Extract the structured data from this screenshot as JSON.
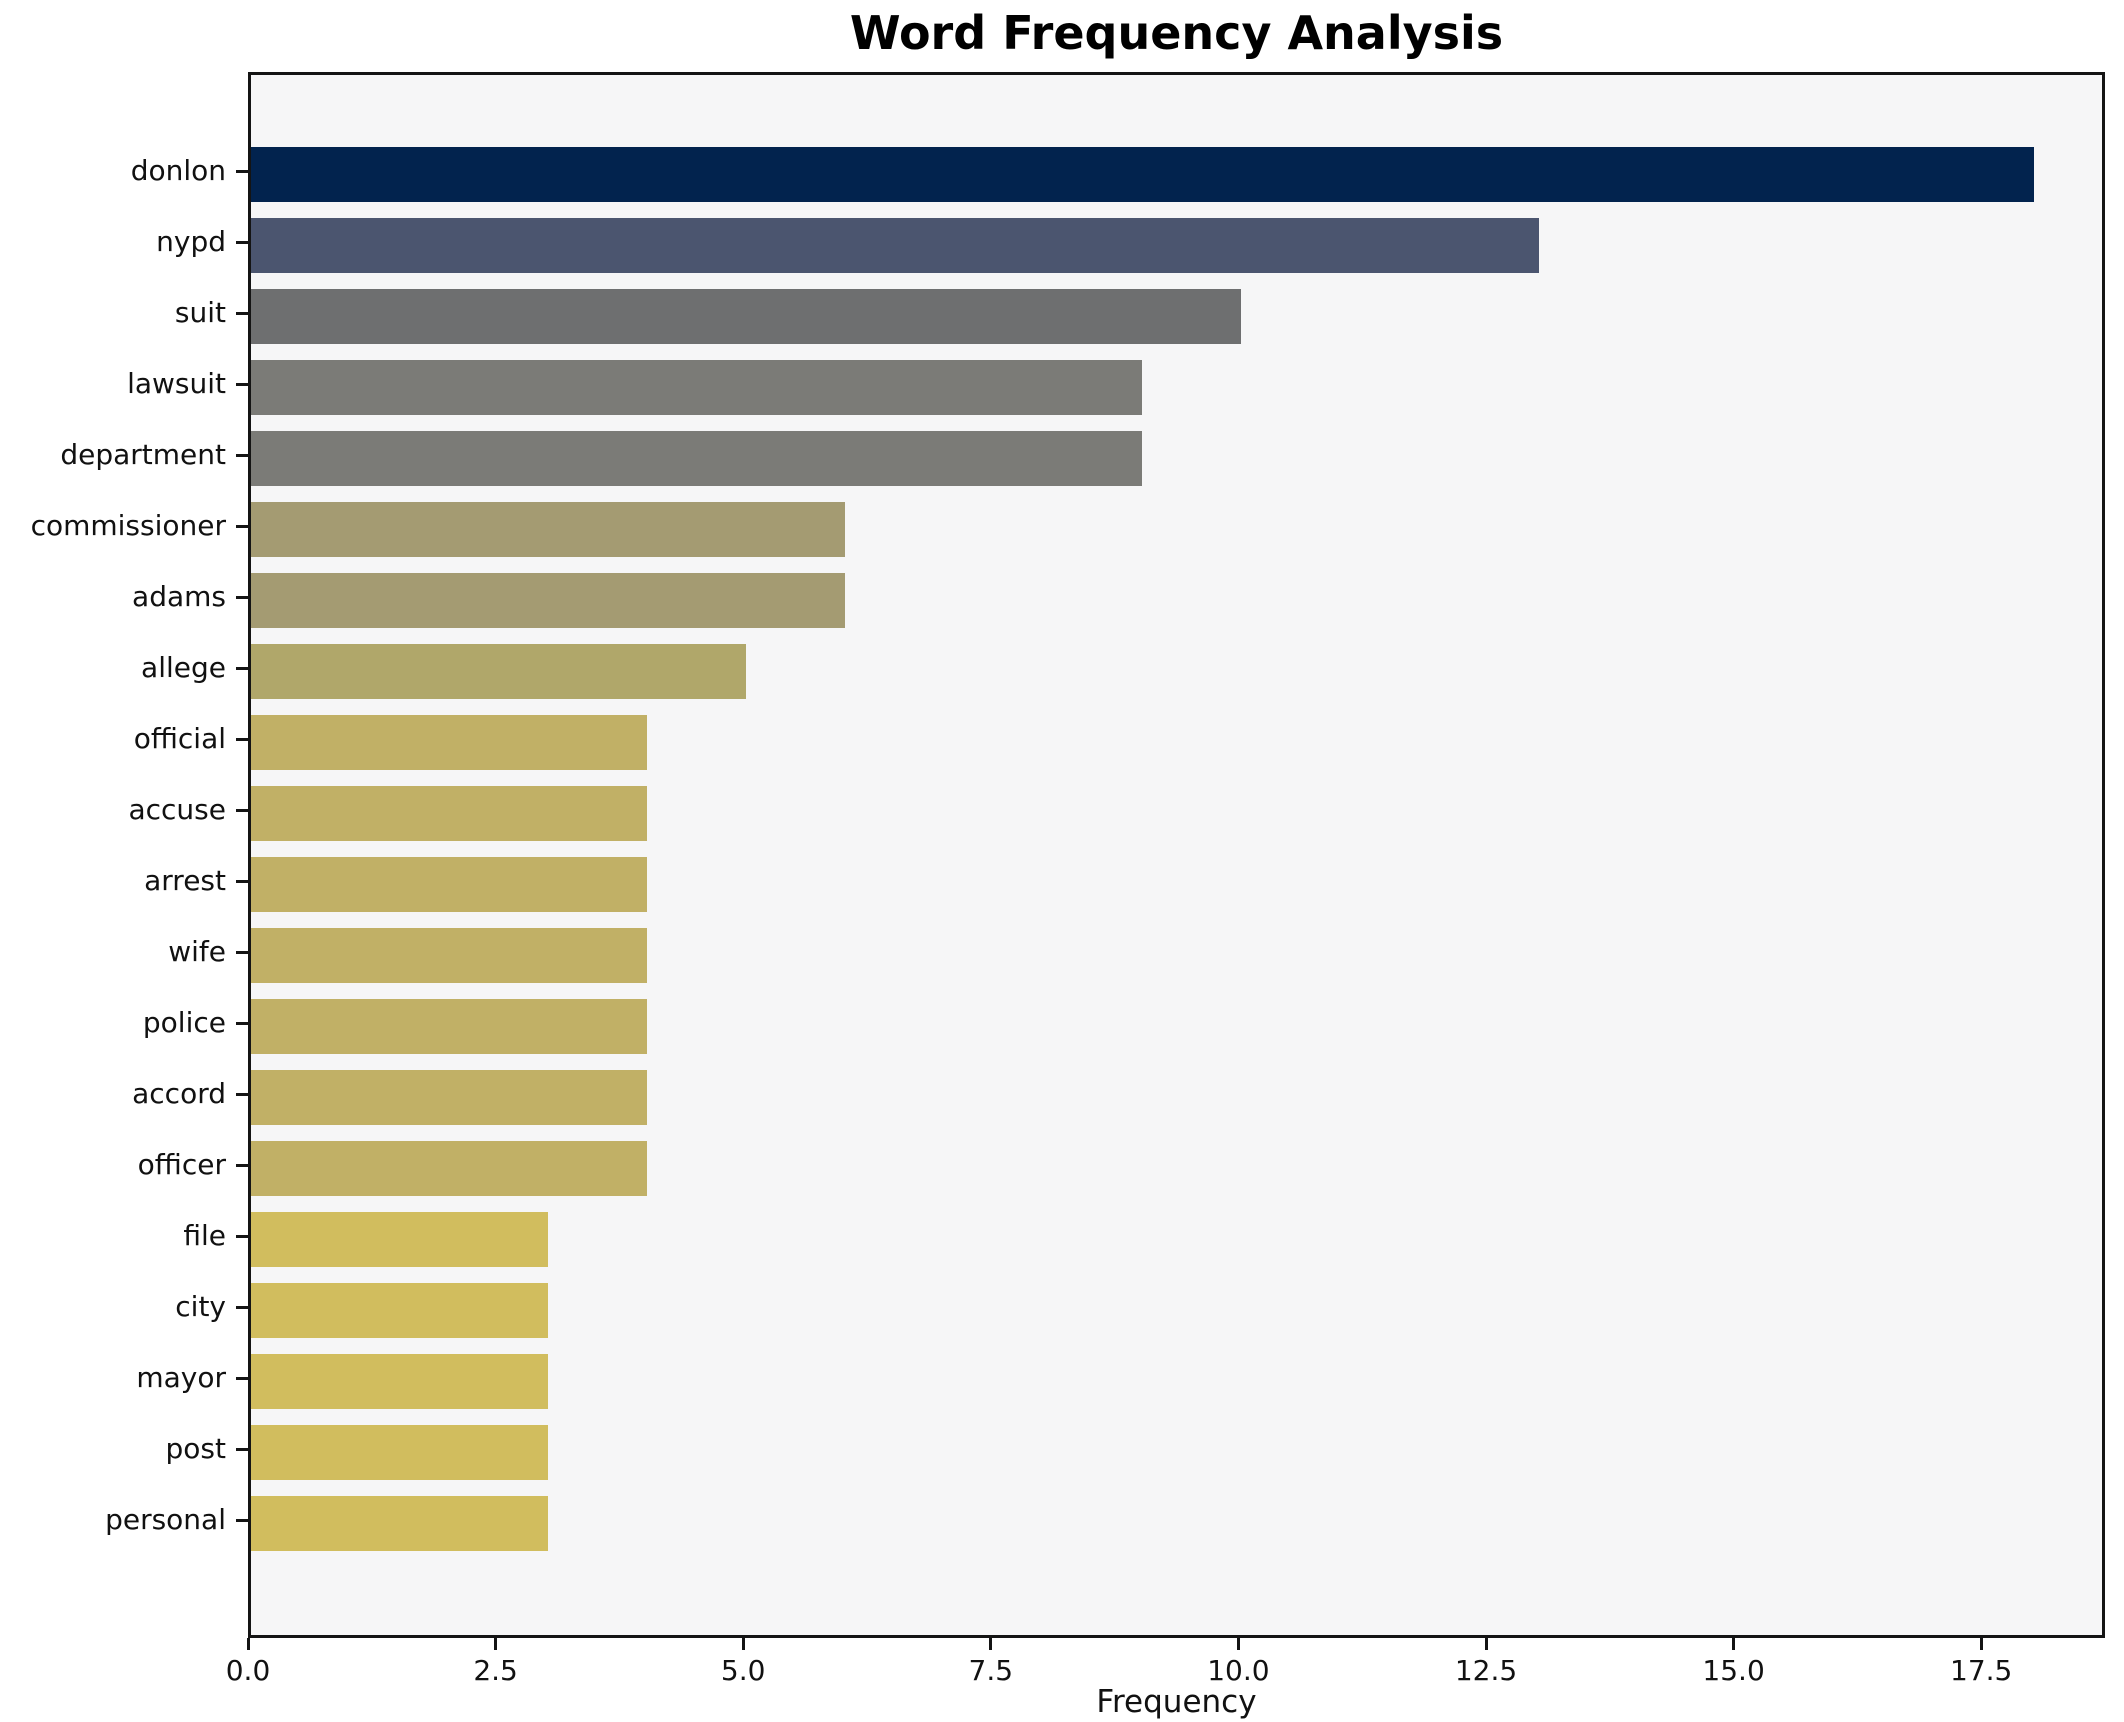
{
  "chart_data": {
    "type": "bar",
    "orientation": "horizontal",
    "title": "Word Frequency Analysis",
    "xlabel": "Frequency",
    "ylabel": "",
    "grid": false,
    "legend": null,
    "xlim": [
      0,
      18.75
    ],
    "x_ticks": [
      0.0,
      2.5,
      5.0,
      7.5,
      10.0,
      12.5,
      15.0,
      17.5
    ],
    "x_tick_labels": [
      "0.0",
      "2.5",
      "5.0",
      "7.5",
      "10.0",
      "12.5",
      "15.0",
      "17.5"
    ],
    "categories": [
      "donlon",
      "nypd",
      "suit",
      "lawsuit",
      "department",
      "commissioner",
      "adams",
      "allege",
      "official",
      "accuse",
      "arrest",
      "wife",
      "police",
      "accord",
      "officer",
      "file",
      "city",
      "mayor",
      "post",
      "personal"
    ],
    "values": [
      18,
      13,
      10,
      9,
      9,
      6,
      6,
      5,
      4,
      4,
      4,
      4,
      4,
      4,
      4,
      3,
      3,
      3,
      3,
      3
    ],
    "bar_colors": [
      "#02234e",
      "#4b556f",
      "#6e6f70",
      "#7b7b77",
      "#7b7b77",
      "#a49b72",
      "#a49b72",
      "#b0a76a",
      "#c1b066",
      "#c1b066",
      "#c1b066",
      "#c1b066",
      "#c1b066",
      "#c1b066",
      "#c1b066",
      "#d1bd5e",
      "#d1bd5e",
      "#d1bd5e",
      "#d1bd5e",
      "#d1bd5e"
    ],
    "colormap": "cividis-reversed",
    "plot_bg": "#f6f6f7",
    "figure_bg": "#ffffff",
    "spine_color": "#141414",
    "text_color": "#111111"
  }
}
